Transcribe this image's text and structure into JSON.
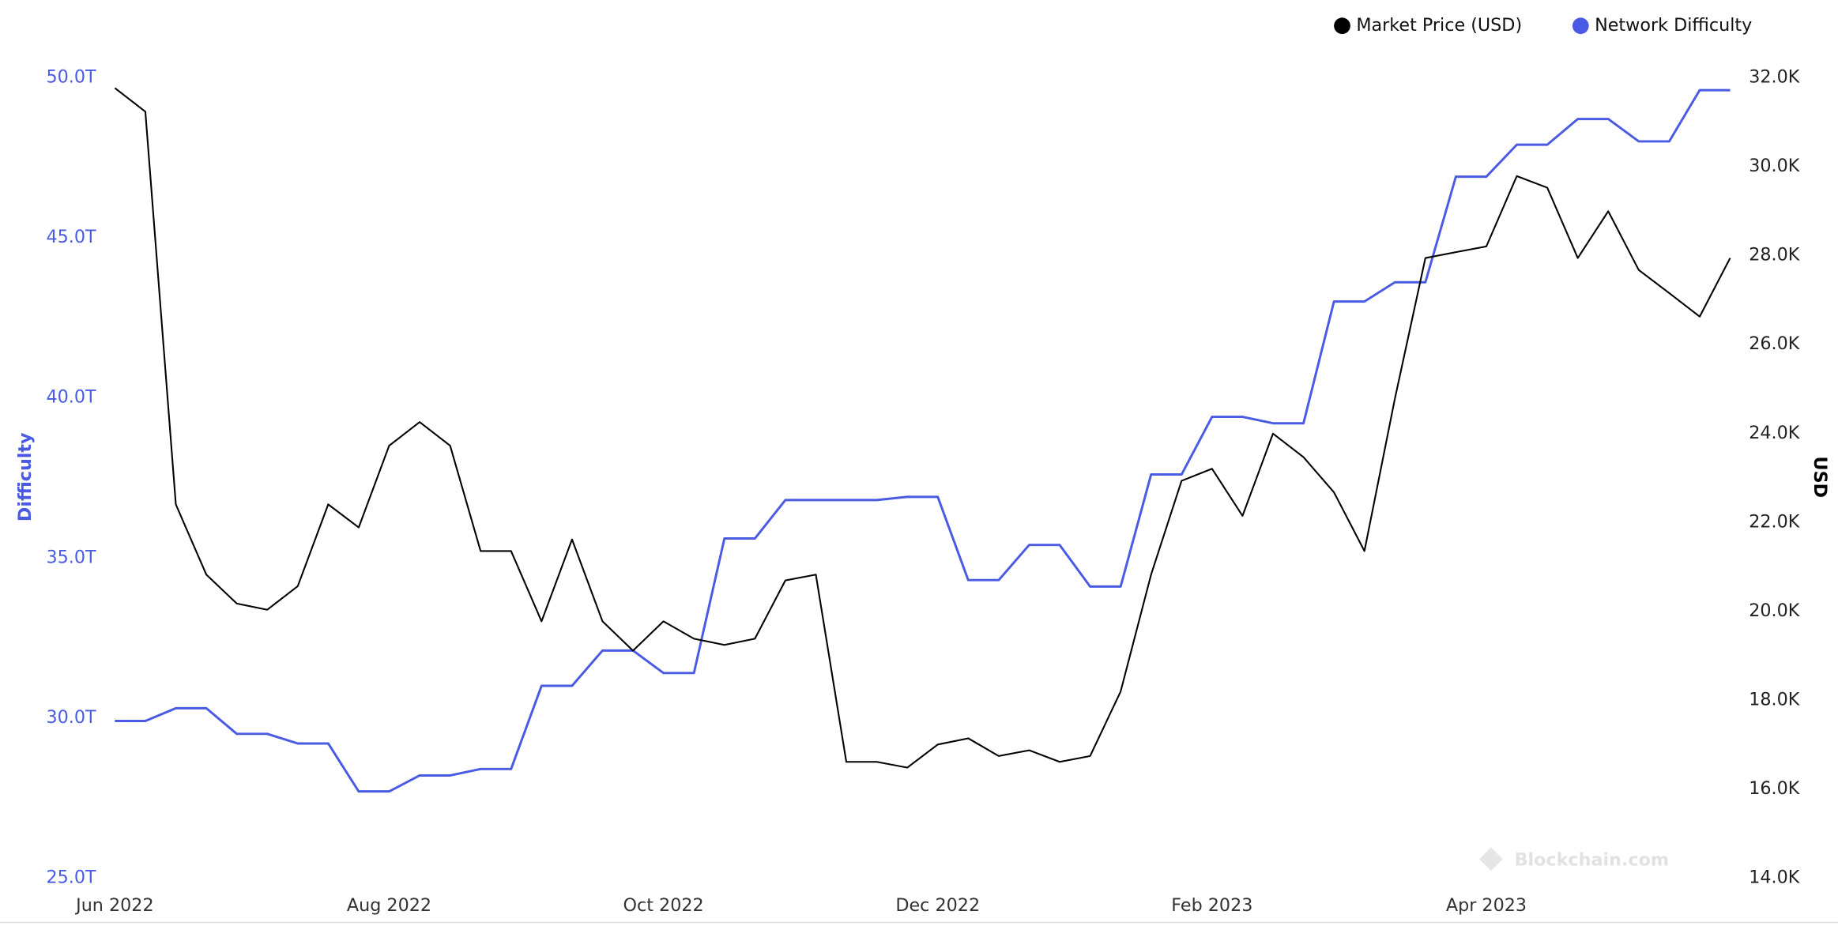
{
  "chart_data": {
    "type": "line",
    "watermark": "Blockchain.com",
    "y_label": "Difficulty",
    "y2_label": "USD",
    "legend": "top-right",
    "categories": [
      "Jun 2022",
      null,
      null,
      null,
      null,
      null,
      null,
      null,
      null,
      "Aug 2022",
      null,
      null,
      null,
      null,
      null,
      null,
      null,
      null,
      "Oct 2022",
      null,
      null,
      null,
      null,
      null,
      null,
      null,
      null,
      "Dec 2022",
      null,
      null,
      null,
      null,
      null,
      null,
      null,
      null,
      "Feb 2023",
      null,
      null,
      null,
      null,
      null,
      null,
      null,
      null,
      "Apr 2023",
      null,
      null,
      null,
      null,
      null,
      null,
      null,
      null
    ],
    "series": [
      {
        "name": "Market Price (USD)",
        "color": "#000000",
        "axis": "y2",
        "values": [
          31760,
          31230,
          22400,
          20820,
          20170,
          20030,
          20560,
          22400,
          21880,
          23720,
          24250,
          23720,
          21350,
          21350,
          19770,
          21610,
          19770,
          19110,
          19770,
          19380,
          19240,
          19380,
          20690,
          20820,
          16610,
          16610,
          16480,
          17000,
          17140,
          16740,
          16870,
          16610,
          16740,
          18190,
          20820,
          22930,
          23200,
          22140,
          23990,
          23460,
          22670,
          21350,
          24780,
          27940,
          28070,
          28200,
          29780,
          29520,
          27940,
          28990,
          27670,
          27150,
          26620,
          27940
        ]
      },
      {
        "name": "Network Difficulty",
        "color": "#4a5be3",
        "axis": "y",
        "values": [
          29.9,
          29.9,
          30.3,
          30.3,
          29.5,
          29.5,
          29.2,
          29.2,
          27.7,
          27.7,
          28.2,
          28.2,
          28.4,
          28.4,
          31.0,
          31.0,
          32.1,
          32.1,
          31.4,
          31.4,
          35.6,
          35.6,
          36.8,
          36.8,
          36.8,
          36.8,
          36.9,
          36.9,
          34.3,
          34.3,
          35.4,
          35.4,
          34.1,
          34.1,
          37.6,
          37.6,
          39.4,
          39.4,
          39.2,
          39.2,
          43.0,
          43.0,
          43.6,
          43.6,
          46.9,
          46.9,
          47.9,
          47.9,
          48.7,
          48.7,
          48.0,
          48.0,
          49.6,
          49.6
        ]
      }
    ],
    "ylim": [
      25,
      50
    ],
    "yticks": [
      {
        "value": 25,
        "label": "25.0T"
      },
      {
        "value": 30,
        "label": "30.0T"
      },
      {
        "value": 35,
        "label": "35.0T"
      },
      {
        "value": 40,
        "label": "40.0T"
      },
      {
        "value": 45,
        "label": "45.0T"
      },
      {
        "value": 50,
        "label": "50.0T"
      }
    ],
    "y2lim": [
      14000,
      32000
    ],
    "y2ticks": [
      {
        "value": 14000,
        "label": "14.0K"
      },
      {
        "value": 16000,
        "label": "16.0K"
      },
      {
        "value": 18000,
        "label": "18.0K"
      },
      {
        "value": 20000,
        "label": "20.0K"
      },
      {
        "value": 22000,
        "label": "22.0K"
      },
      {
        "value": 24000,
        "label": "24.0K"
      },
      {
        "value": 26000,
        "label": "26.0K"
      },
      {
        "value": 28000,
        "label": "28.0K"
      },
      {
        "value": 30000,
        "label": "30.0K"
      },
      {
        "value": 32000,
        "label": "32.0K"
      }
    ]
  }
}
